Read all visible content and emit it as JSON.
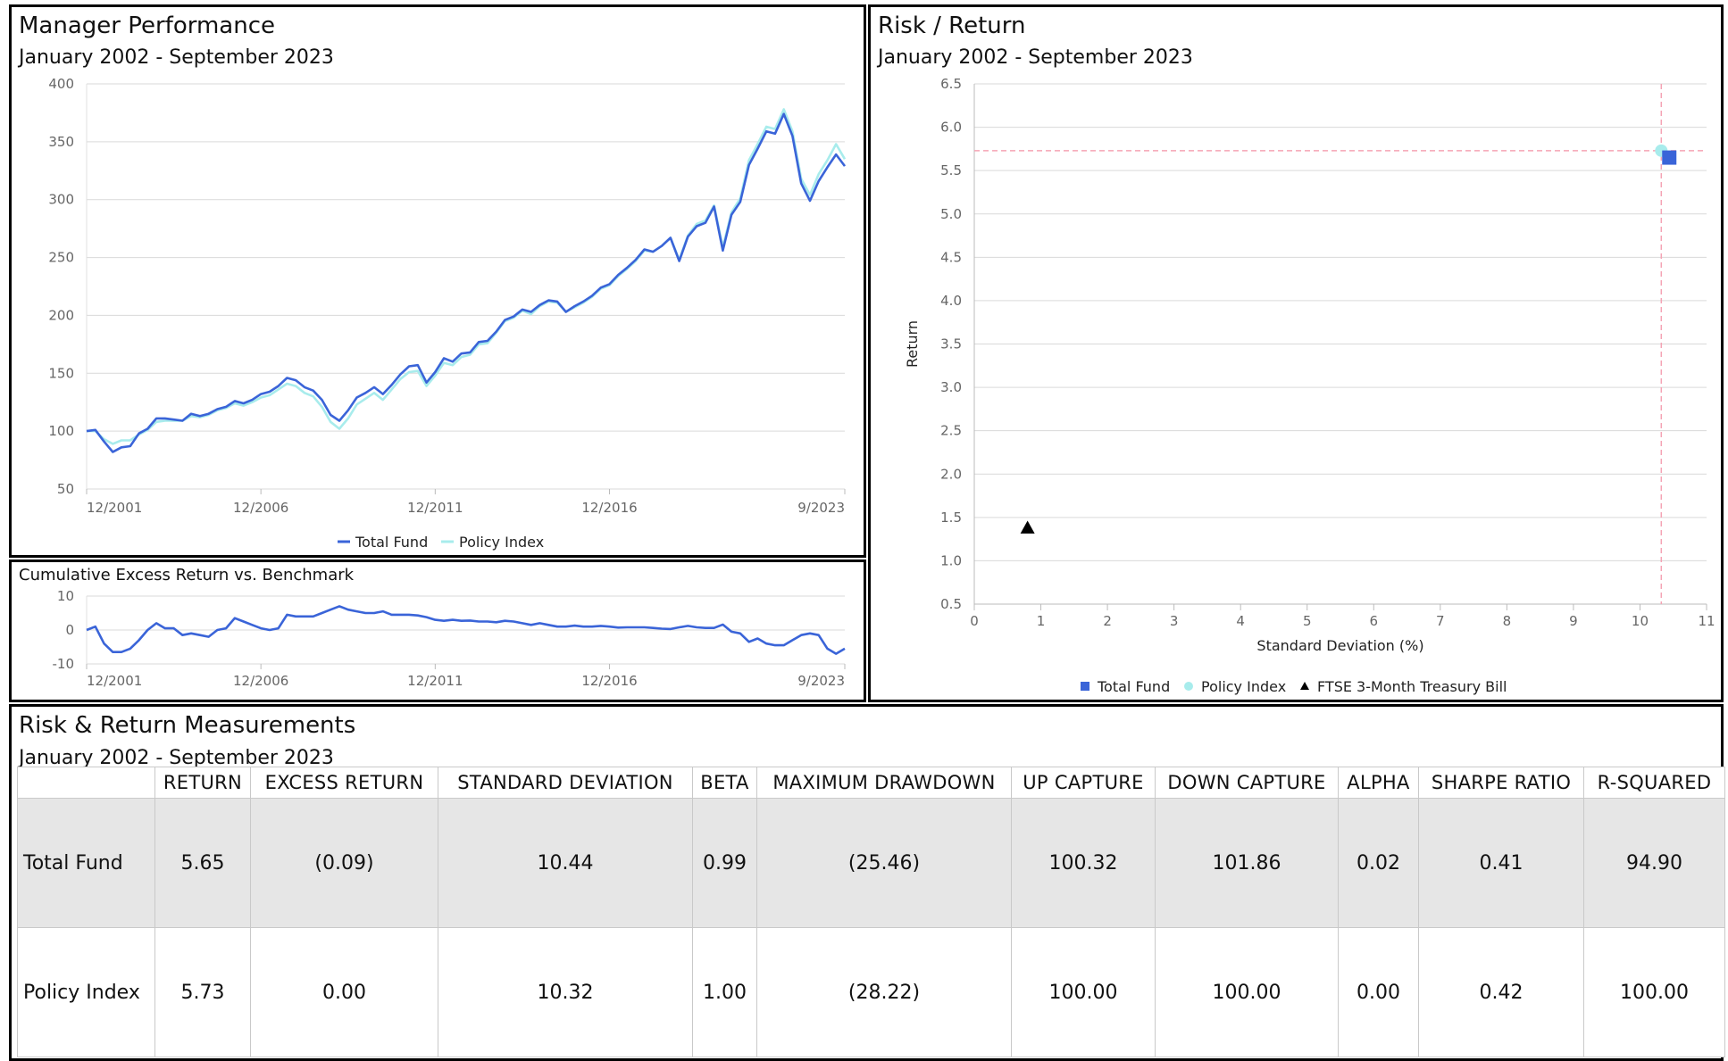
{
  "performance": {
    "title": "Manager Performance",
    "subtitle": "January 2002 - September 2023",
    "legend": [
      "Total Fund",
      "Policy Index"
    ]
  },
  "excess": {
    "title": "Cumulative Excess Return vs. Benchmark"
  },
  "risk_return": {
    "title": "Risk / Return",
    "subtitle": "January 2002 - September 2023",
    "legend": [
      "Total Fund",
      "Policy Index",
      "FTSE 3-Month Treasury Bill"
    ]
  },
  "measurements": {
    "title": "Risk & Return Measurements",
    "subtitle": "January 2002 - September 2023",
    "columns": [
      "",
      "RETURN",
      "EXCESS RETURN",
      "STANDARD DEVIATION",
      "BETA",
      "MAXIMUM DRAWDOWN",
      "UP CAPTURE",
      "DOWN CAPTURE",
      "ALPHA",
      "SHARPE RATIO",
      "R-SQUARED"
    ],
    "rows": [
      [
        "Total Fund",
        "5.65",
        "(0.09)",
        "10.44",
        "0.99",
        "(25.46)",
        "100.32",
        "101.86",
        "0.02",
        "0.41",
        "94.90"
      ],
      [
        "Policy Index",
        "5.73",
        "0.00",
        "10.32",
        "1.00",
        "(28.22)",
        "100.00",
        "100.00",
        "0.00",
        "0.42",
        "100.00"
      ]
    ]
  },
  "colors": {
    "total_fund": "#3a64d8",
    "policy_index": "#a8ecec",
    "tbill": "#000000",
    "grid": "#d9d9d9",
    "reference": "#f5a3b4"
  },
  "chart_data": [
    {
      "type": "line",
      "title": "Manager Performance",
      "subtitle": "January 2002 - September 2023",
      "x_ticks": [
        "12/2001",
        "12/2006",
        "12/2011",
        "12/2016",
        "9/2023"
      ],
      "ylim": [
        50,
        400
      ],
      "y_ticks": [
        50,
        100,
        150,
        200,
        250,
        300,
        350,
        400
      ],
      "x_start": 2001.92,
      "x_end": 2023.67,
      "x": [
        2001.92,
        2002.17,
        2002.42,
        2002.67,
        2002.92,
        2003.17,
        2003.42,
        2003.67,
        2003.92,
        2004.17,
        2004.42,
        2004.67,
        2004.92,
        2005.17,
        2005.42,
        2005.67,
        2005.92,
        2006.17,
        2006.42,
        2006.67,
        2006.92,
        2007.17,
        2007.42,
        2007.67,
        2007.92,
        2008.17,
        2008.42,
        2008.67,
        2008.92,
        2009.17,
        2009.42,
        2009.67,
        2009.92,
        2010.17,
        2010.42,
        2010.67,
        2010.92,
        2011.17,
        2011.42,
        2011.67,
        2011.92,
        2012.17,
        2012.42,
        2012.67,
        2012.92,
        2013.17,
        2013.42,
        2013.67,
        2013.92,
        2014.17,
        2014.42,
        2014.67,
        2014.92,
        2015.17,
        2015.42,
        2015.67,
        2015.92,
        2016.17,
        2016.42,
        2016.67,
        2016.92,
        2017.17,
        2017.42,
        2017.67,
        2017.92,
        2018.17,
        2018.42,
        2018.67,
        2018.92,
        2019.17,
        2019.42,
        2019.67,
        2019.92,
        2020.17,
        2020.42,
        2020.67,
        2020.92,
        2021.17,
        2021.42,
        2021.67,
        2021.92,
        2022.17,
        2022.42,
        2022.67,
        2022.92,
        2023.17,
        2023.42,
        2023.67
      ],
      "series": [
        {
          "name": "Total Fund",
          "values": [
            100,
            101,
            91,
            82,
            86,
            87,
            98,
            102,
            111,
            111,
            110,
            109,
            115,
            113,
            115,
            119,
            121,
            126,
            124,
            127,
            132,
            134,
            139,
            146,
            144,
            138,
            135,
            127,
            114,
            109,
            118,
            129,
            133,
            138,
            132,
            140,
            149,
            156,
            157,
            142,
            151,
            163,
            160,
            167,
            168,
            177,
            178,
            186,
            196,
            199,
            205,
            203,
            209,
            213,
            212,
            203,
            208,
            212,
            217,
            224,
            227,
            235,
            241,
            248,
            257,
            255,
            260,
            267,
            247,
            268,
            277,
            280,
            294,
            256,
            287,
            298,
            330,
            344,
            359,
            357,
            374,
            355,
            314,
            299,
            316,
            328,
            339,
            329
          ]
        },
        {
          "name": "Policy Index",
          "values": [
            100,
            100,
            93,
            89,
            92,
            92,
            97,
            101,
            108,
            109,
            109,
            109,
            113,
            112,
            114,
            118,
            120,
            124,
            122,
            125,
            129,
            131,
            136,
            141,
            139,
            133,
            130,
            121,
            108,
            102,
            111,
            123,
            128,
            133,
            127,
            136,
            145,
            151,
            152,
            139,
            148,
            159,
            157,
            164,
            166,
            175,
            176,
            185,
            195,
            198,
            204,
            201,
            208,
            212,
            211,
            203,
            207,
            211,
            216,
            223,
            226,
            234,
            240,
            247,
            256,
            255,
            260,
            267,
            248,
            269,
            279,
            282,
            295,
            259,
            289,
            301,
            334,
            348,
            363,
            361,
            378,
            359,
            318,
            304,
            322,
            334,
            348,
            335
          ]
        }
      ]
    },
    {
      "type": "line",
      "title": "Cumulative Excess Return vs. Benchmark",
      "x_ticks": [
        "12/2001",
        "12/2006",
        "12/2011",
        "12/2016",
        "9/2023"
      ],
      "ylim": [
        -10,
        10
      ],
      "y_ticks": [
        -10,
        0,
        10
      ],
      "x_start": 2001.92,
      "x_end": 2023.67,
      "x": [
        2001.92,
        2002.17,
        2002.42,
        2002.67,
        2002.92,
        2003.17,
        2003.42,
        2003.67,
        2003.92,
        2004.17,
        2004.42,
        2004.67,
        2004.92,
        2005.17,
        2005.42,
        2005.67,
        2005.92,
        2006.17,
        2006.42,
        2006.67,
        2006.92,
        2007.17,
        2007.42,
        2007.67,
        2007.92,
        2008.17,
        2008.42,
        2008.67,
        2008.92,
        2009.17,
        2009.42,
        2009.67,
        2009.92,
        2010.17,
        2010.42,
        2010.67,
        2010.92,
        2011.17,
        2011.42,
        2011.67,
        2011.92,
        2012.17,
        2012.42,
        2012.67,
        2012.92,
        2013.17,
        2013.42,
        2013.67,
        2013.92,
        2014.17,
        2014.42,
        2014.67,
        2014.92,
        2015.17,
        2015.42,
        2015.67,
        2015.92,
        2016.17,
        2016.42,
        2016.67,
        2016.92,
        2017.17,
        2017.42,
        2017.67,
        2017.92,
        2018.17,
        2018.42,
        2018.67,
        2018.92,
        2019.17,
        2019.42,
        2019.67,
        2019.92,
        2020.17,
        2020.42,
        2020.67,
        2020.92,
        2021.17,
        2021.42,
        2021.67,
        2021.92,
        2022.17,
        2022.42,
        2022.67,
        2022.92,
        2023.17,
        2023.42,
        2023.67
      ],
      "series": [
        {
          "name": "Cumulative Excess Return",
          "values": [
            0,
            1,
            -4,
            -6.5,
            -6.5,
            -5.5,
            -3,
            0,
            2,
            0.5,
            0.5,
            -1.5,
            -1,
            -1.5,
            -2,
            0,
            0.5,
            3.5,
            2.5,
            1.5,
            0.5,
            0,
            0.5,
            4.5,
            4,
            4,
            4,
            5,
            6,
            7,
            6,
            5.5,
            5,
            5,
            5.5,
            4.5,
            4.5,
            4.5,
            4.3,
            3.8,
            3,
            2.7,
            3,
            2.7,
            2.8,
            2.5,
            2.5,
            2.3,
            2.7,
            2.5,
            2,
            1.5,
            2,
            1.5,
            1,
            1,
            1.3,
            1,
            1,
            1.2,
            1,
            0.7,
            0.8,
            0.8,
            0.8,
            0.6,
            0.4,
            0.3,
            0.8,
            1.2,
            0.8,
            0.6,
            0.6,
            1.6,
            -0.5,
            -1,
            -3.5,
            -2.5,
            -4,
            -4.5,
            -4.5,
            -3,
            -1.5,
            -1,
            -1.5,
            -5.5,
            -7,
            -5.5
          ]
        }
      ]
    },
    {
      "type": "scatter",
      "title": "Risk / Return",
      "subtitle": "January 2002 - September 2023",
      "xlabel": "Standard Deviation (%)",
      "ylabel": "Return",
      "xlim": [
        0,
        11
      ],
      "ylim": [
        0.5,
        6.5
      ],
      "x_ticks": [
        0,
        1,
        2,
        3,
        4,
        5,
        6,
        7,
        8,
        9,
        10,
        11
      ],
      "y_ticks": [
        "0.5",
        "1.0",
        "1.5",
        "2.0",
        "2.5",
        "3.0",
        "3.5",
        "4.0",
        "4.5",
        "5.0",
        "5.5",
        "6.0",
        "6.5"
      ],
      "reference_lines": {
        "x": 10.32,
        "y": 5.73
      },
      "points": [
        {
          "name": "Total Fund",
          "x": 10.44,
          "y": 5.65,
          "marker": "square"
        },
        {
          "name": "Policy Index",
          "x": 10.32,
          "y": 5.73,
          "marker": "circle"
        },
        {
          "name": "FTSE 3-Month Treasury Bill",
          "x": 0.8,
          "y": 1.38,
          "marker": "triangle"
        }
      ]
    }
  ]
}
